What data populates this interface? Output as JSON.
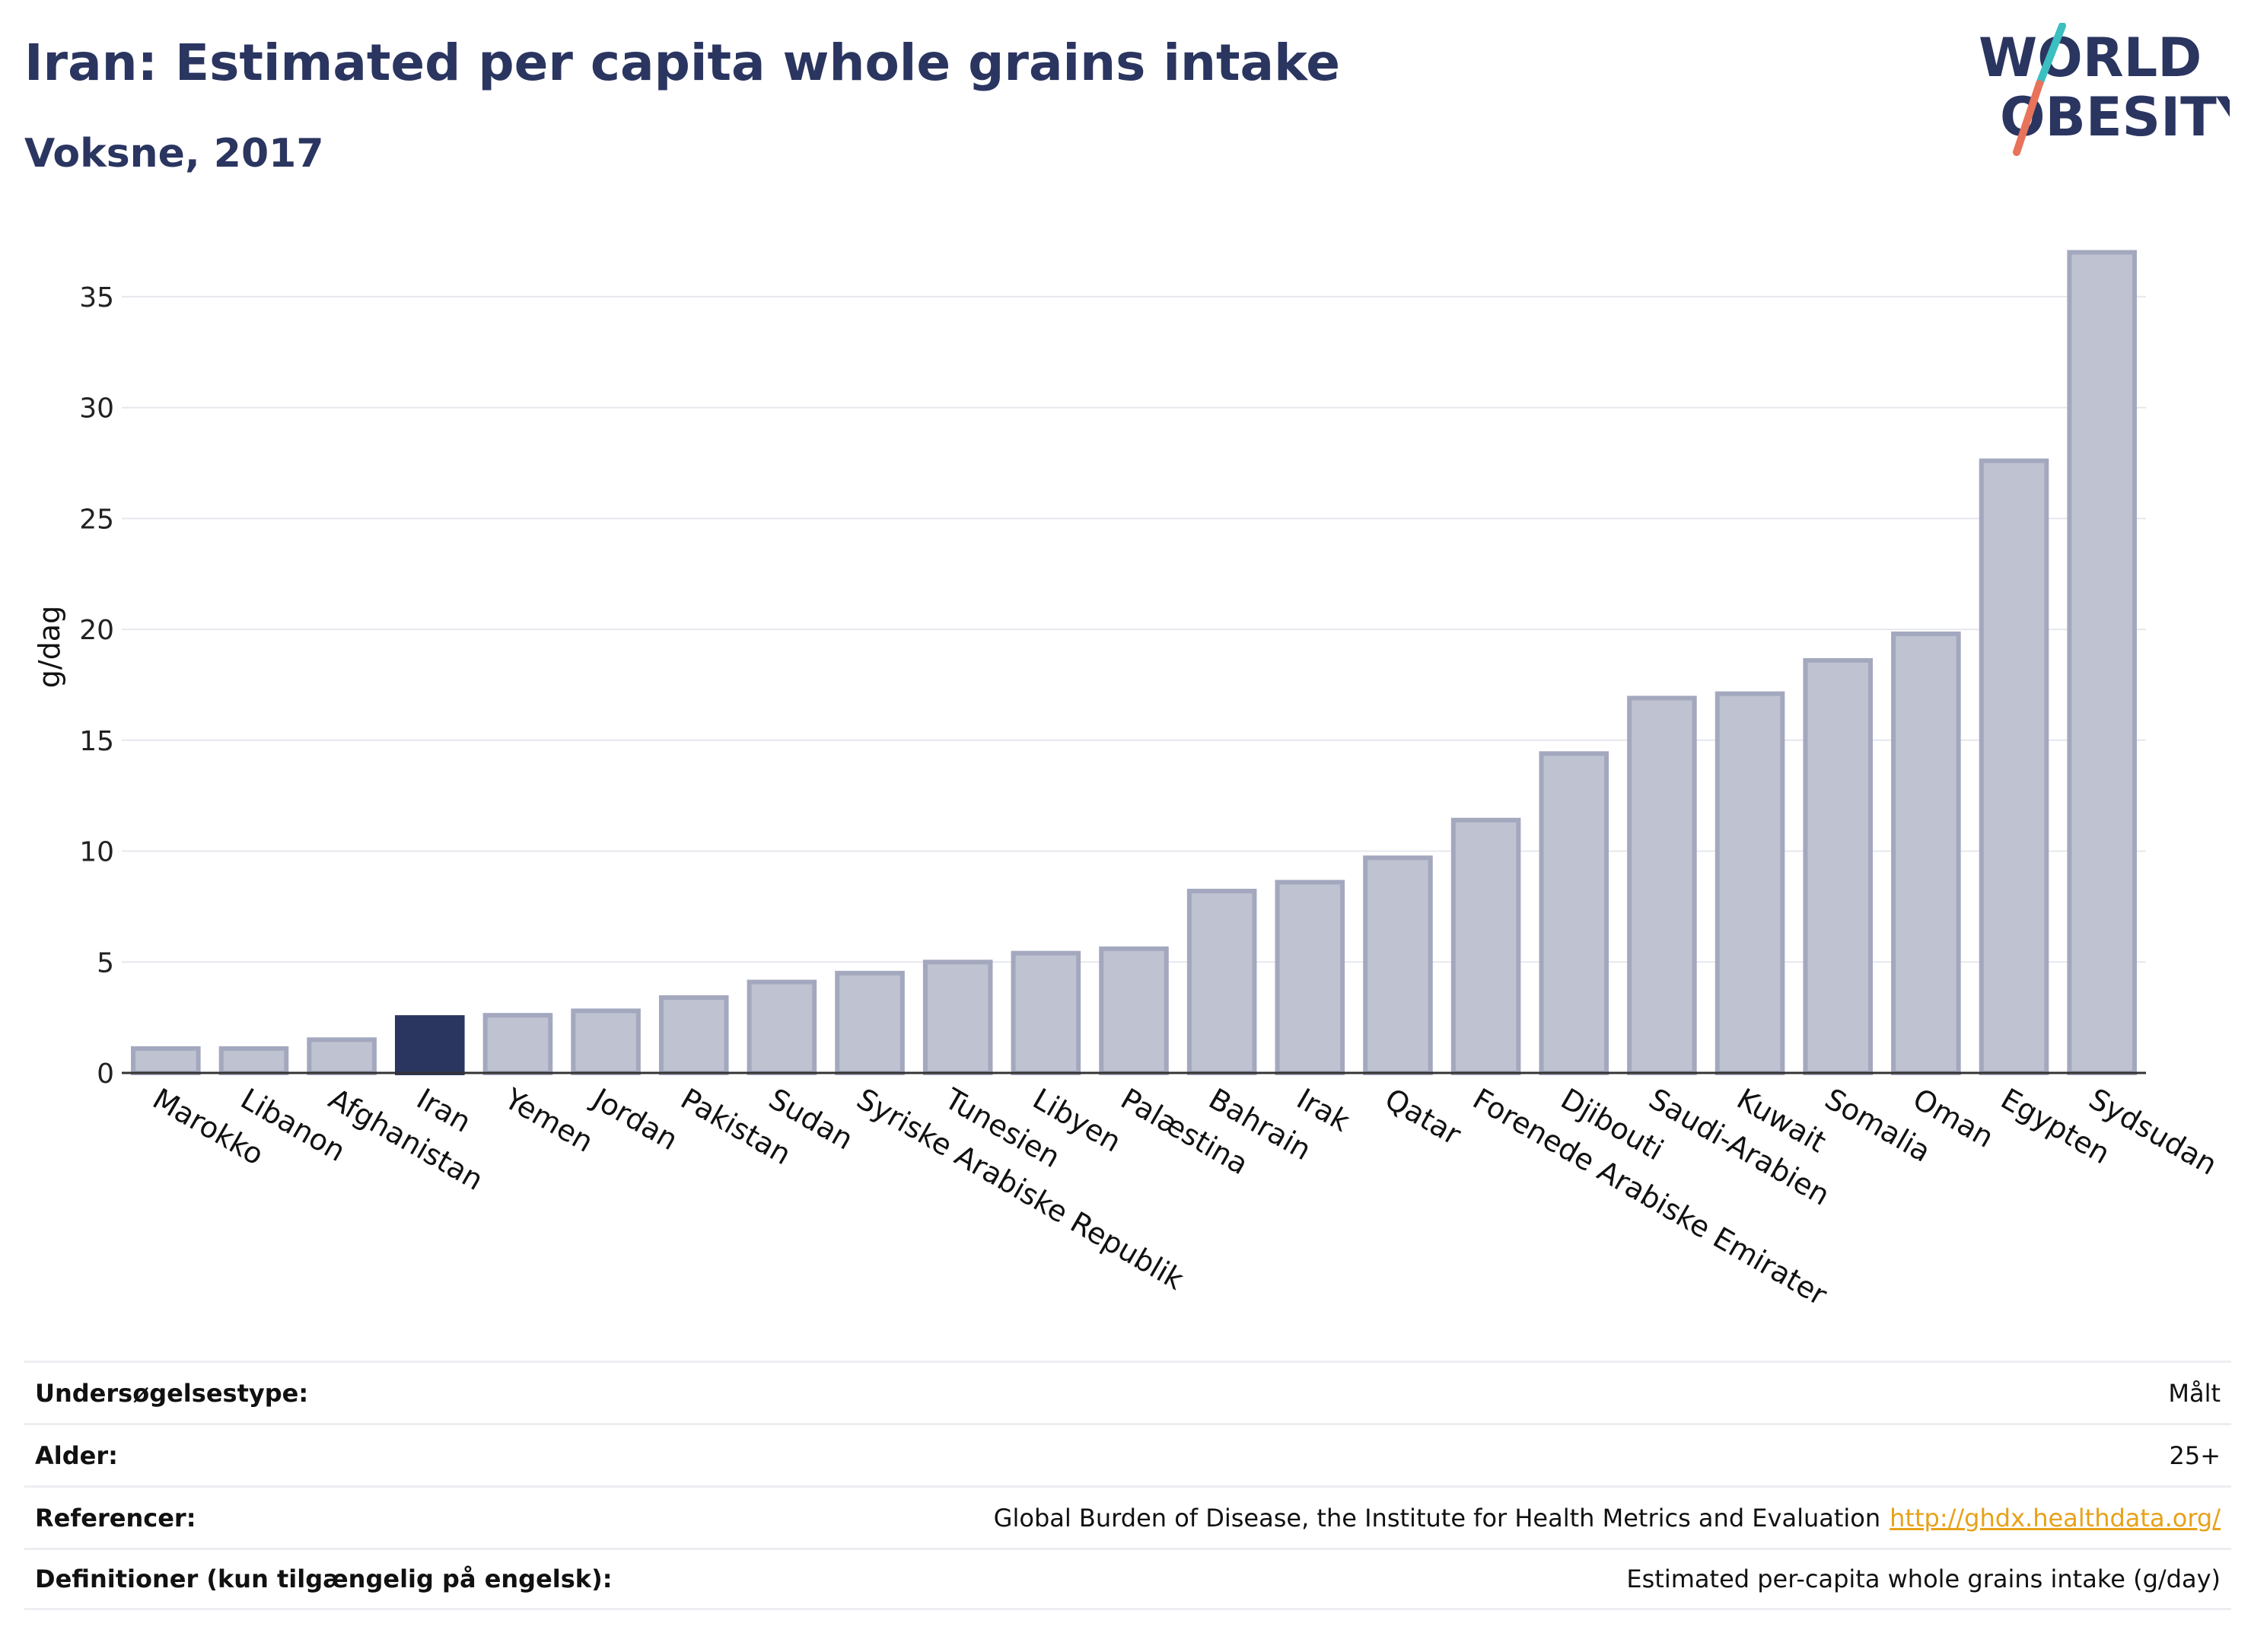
{
  "header": {
    "title": "Iran: Estimated per capita whole grains intake",
    "subtitle": "Voksne, 2017"
  },
  "logo": {
    "line1": "WORLD",
    "line2": "OBESITY",
    "accent_teal": "#3bbfc1",
    "accent_coral": "#e8735a"
  },
  "colors": {
    "highlight": "#2a3560",
    "bar_fill": "#bfc2d0",
    "bar_stroke": "#a3a8be",
    "grid": "#e6e8ee"
  },
  "chart_data": {
    "type": "bar",
    "title": "Iran: Estimated per capita whole grains intake",
    "subtitle": "Voksne, 2017",
    "ylabel": "g/dag",
    "xlabel": "",
    "ylim": [
      0,
      37.5
    ],
    "yticks": [
      0,
      5,
      10,
      15,
      20,
      25,
      30,
      35
    ],
    "grid": true,
    "highlight": "Iran",
    "categories": [
      "Marokko",
      "Libanon",
      "Afghanistan",
      "Iran",
      "Yemen",
      "Jordan",
      "Pakistan",
      "Sudan",
      "Syriske Arabiske Republik",
      "Tunesien",
      "Libyen",
      "Palæstina",
      "Bahrain",
      "Irak",
      "Qatar",
      "Forenede Arabiske Emirater",
      "Djibouti",
      "Saudi-Arabien",
      "Kuwait",
      "Somalia",
      "Oman",
      "Egypten",
      "Sydsudan"
    ],
    "values": [
      1.1,
      1.1,
      1.5,
      2.5,
      2.6,
      2.8,
      3.4,
      4.1,
      4.5,
      5.0,
      5.4,
      5.6,
      8.2,
      8.6,
      9.7,
      11.4,
      14.4,
      16.9,
      17.1,
      18.6,
      19.8,
      27.6,
      37.0
    ]
  },
  "meta": {
    "rows": [
      {
        "label": "Undersøgelsestype:",
        "value": "Målt",
        "link": ""
      },
      {
        "label": "Alder:",
        "value": "25+",
        "link": ""
      },
      {
        "label": "Referencer:",
        "value": "Global Burden of Disease, the Institute for Health Metrics and Evaluation",
        "link": "http://ghdx.healthdata.org/"
      },
      {
        "label": "Definitioner (kun tilgængelig på engelsk):",
        "value": "Estimated per-capita whole grains intake (g/day)",
        "link": ""
      }
    ]
  }
}
